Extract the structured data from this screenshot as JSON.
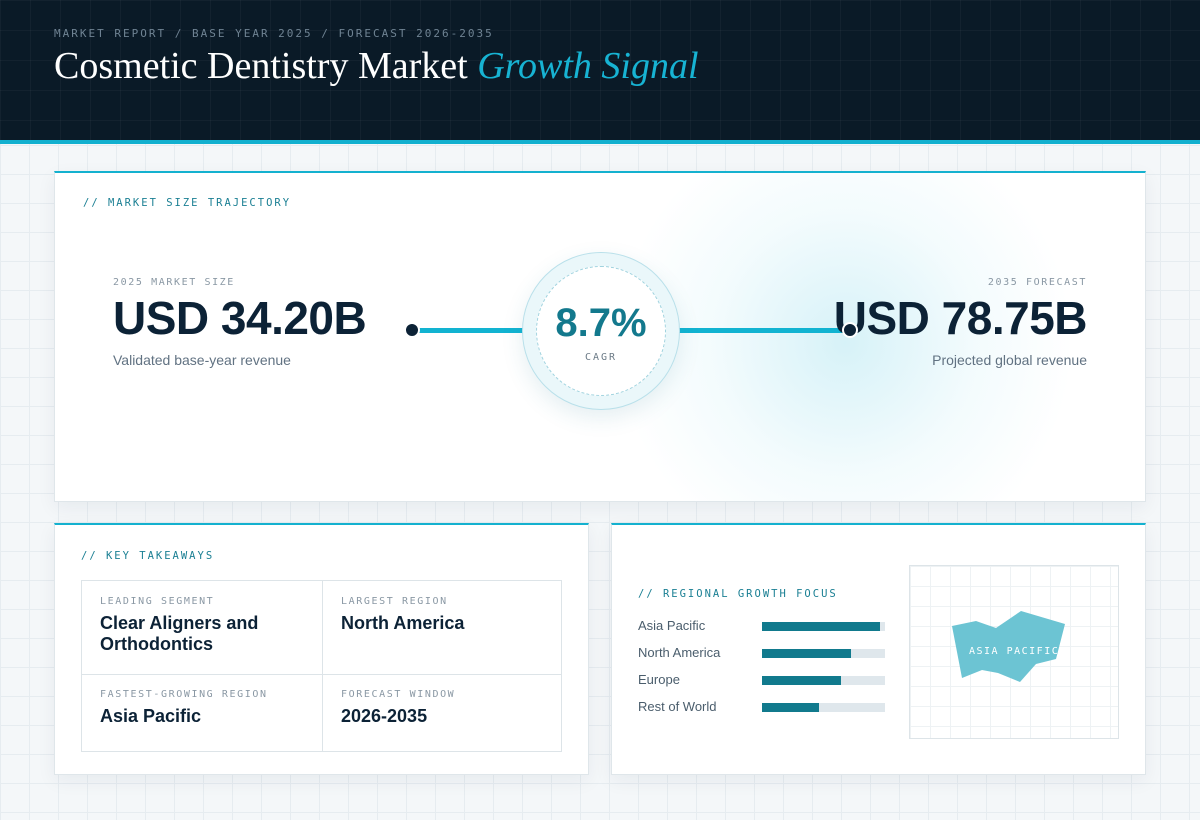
{
  "header": {
    "eyebrow": "MARKET REPORT / BASE YEAR 2025 / FORECAST 2026-2035",
    "title_main": "Cosmetic Dentistry Market",
    "title_accent": "Growth Signal"
  },
  "trajectory": {
    "section_label": "// MARKET SIZE TRAJECTORY",
    "start": {
      "label": "2025 MARKET SIZE",
      "value": "USD 34.20B",
      "caption": "Validated base-year revenue"
    },
    "end": {
      "label": "2035 FORECAST",
      "value": "USD 78.75B",
      "caption": "Projected global revenue"
    },
    "cagr": {
      "value": "8.7%",
      "label": "CAGR"
    }
  },
  "takeaways": {
    "section_label": "// KEY TAKEAWAYS",
    "items": [
      {
        "label": "LEADING SEGMENT",
        "value": "Clear Aligners and Orthodontics"
      },
      {
        "label": "LARGEST REGION",
        "value": "North America"
      },
      {
        "label": "FASTEST-GROWING REGION",
        "value": "Asia Pacific"
      },
      {
        "label": "FORECAST WINDOW",
        "value": "2026-2035"
      }
    ]
  },
  "regional": {
    "section_label": "// REGIONAL GROWTH FOCUS",
    "bars": [
      {
        "label": "Asia Pacific",
        "fraction": 0.96
      },
      {
        "label": "North America",
        "fraction": 0.72
      },
      {
        "label": "Europe",
        "fraction": 0.64
      },
      {
        "label": "Rest of World",
        "fraction": 0.46
      }
    ],
    "map_label": "ASIA PACIFIC"
  },
  "colors": {
    "accent": "#12b3d1",
    "accent_dark": "#117a8d",
    "navy": "#0c2236",
    "map_fill": "#6cc4d3"
  }
}
